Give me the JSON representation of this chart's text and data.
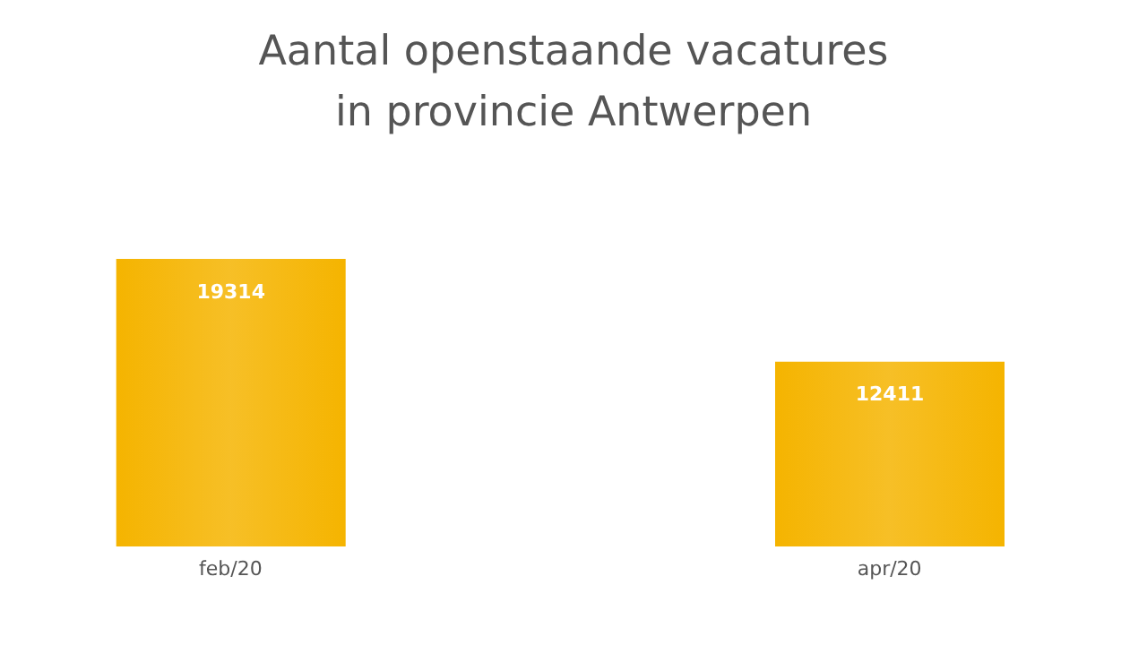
{
  "chart_data": {
    "type": "bar",
    "title": "Aantal openstaande vacatures\nin provincie Antwerpen",
    "categories": [
      "feb/20",
      "apr/20"
    ],
    "values": [
      19314,
      12411
    ],
    "color": "#f5b400",
    "data_labels": true
  }
}
